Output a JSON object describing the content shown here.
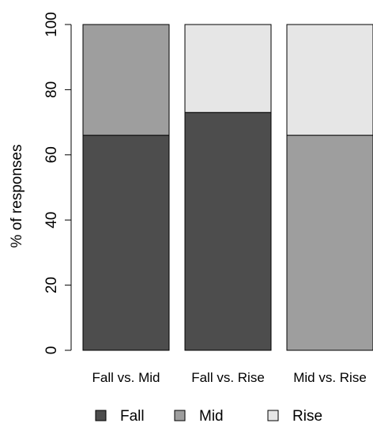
{
  "chart_data": {
    "type": "bar",
    "stacked": true,
    "categories": [
      "Fall vs. Mid",
      "Fall vs. Rise",
      "Mid vs. Rise"
    ],
    "series": [
      {
        "name": "Fall",
        "color": "#4d4d4d",
        "values": [
          66,
          73,
          0
        ]
      },
      {
        "name": "Mid",
        "color": "#9e9e9e",
        "values": [
          34,
          0,
          66
        ]
      },
      {
        "name": "Rise",
        "color": "#e6e6e6",
        "values": [
          0,
          27,
          34
        ]
      }
    ],
    "ylabel": "% of responses",
    "ylim": [
      0,
      100
    ],
    "yticks": [
      0,
      20,
      40,
      60,
      80,
      100
    ],
    "grid": false,
    "legend_position": "bottom"
  }
}
